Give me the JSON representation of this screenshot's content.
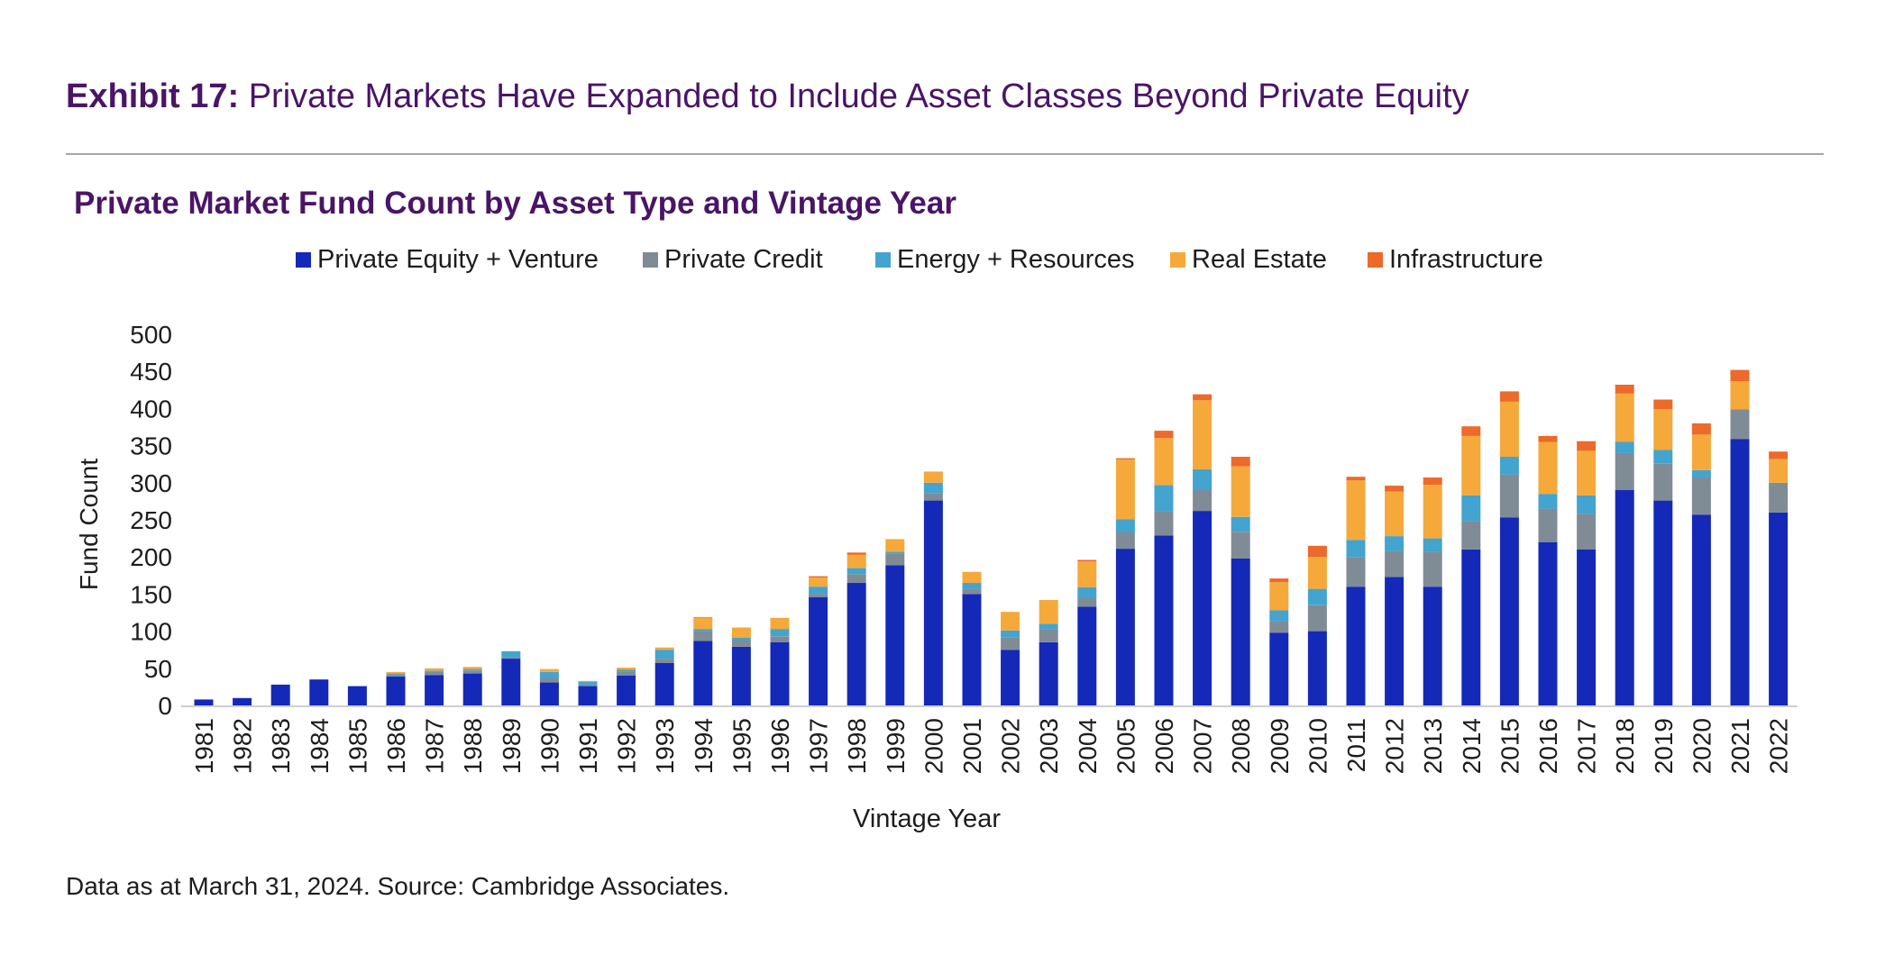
{
  "exhibit": {
    "lead": "Exhibit 17:",
    "text": " Private Markets Have Expanded to Include Asset Classes Beyond Private Equity"
  },
  "source": "Data as at March 31, 2024. Source: Cambridge Associates.",
  "chart_data": {
    "type": "bar",
    "stacked": true,
    "title": "Private Market Fund Count by Asset Type and Vintage Year",
    "xlabel": "Vintage Year",
    "ylabel": "Fund Count",
    "ylim": [
      0,
      500
    ],
    "yticks": [
      0,
      50,
      100,
      150,
      200,
      250,
      300,
      350,
      400,
      450,
      500
    ],
    "legend": "top",
    "grid": false,
    "categories": [
      "1981",
      "1982",
      "1983",
      "1984",
      "1985",
      "1986",
      "1987",
      "1988",
      "1989",
      "1990",
      "1991",
      "1992",
      "1993",
      "1994",
      "1995",
      "1996",
      "1997",
      "1998",
      "1999",
      "2000",
      "2001",
      "2002",
      "2003",
      "2004",
      "2005",
      "2006",
      "2007",
      "2008",
      "2009",
      "2010",
      "2011",
      "2012",
      "2013",
      "2014",
      "2015",
      "2016",
      "2017",
      "2018",
      "2019",
      "2020",
      "2021",
      "2022"
    ],
    "series": [
      {
        "name": "Private Equity + Venture",
        "color": "#1429b8",
        "values": [
          8,
          10,
          28,
          35,
          26,
          39,
          41,
          43,
          63,
          31,
          26,
          40,
          57,
          87,
          79,
          85,
          146,
          165,
          189,
          276,
          150,
          75,
          85,
          133,
          211,
          229,
          262,
          198,
          98,
          100,
          160,
          173,
          160,
          210,
          253,
          220,
          210,
          290,
          276,
          257,
          359,
          260
        ]
      },
      {
        "name": "Private Credit",
        "color": "#7f8c96",
        "values": [
          0,
          0,
          0,
          0,
          0,
          3,
          4,
          4,
          2,
          6,
          2,
          6,
          6,
          13,
          9,
          8,
          4,
          12,
          16,
          10,
          7,
          17,
          18,
          12,
          22,
          33,
          28,
          36,
          15,
          35,
          40,
          35,
          47,
          38,
          58,
          45,
          48,
          50,
          50,
          50,
          40,
          40
        ]
      },
      {
        "name": "Energy + Resources",
        "color": "#43a4cf",
        "values": [
          0,
          0,
          0,
          0,
          0,
          1,
          2,
          2,
          8,
          8,
          4,
          2,
          12,
          3,
          3,
          10,
          10,
          8,
          2,
          14,
          8,
          9,
          7,
          14,
          18,
          35,
          28,
          20,
          15,
          22,
          23,
          20,
          18,
          35,
          24,
          20,
          25,
          15,
          18,
          10,
          0,
          0
        ]
      },
      {
        "name": "Real Estate",
        "color": "#f5a93a",
        "values": [
          0,
          0,
          0,
          0,
          0,
          2,
          3,
          3,
          0,
          4,
          1,
          3,
          3,
          15,
          14,
          15,
          12,
          18,
          17,
          15,
          15,
          25,
          32,
          35,
          80,
          63,
          93,
          68,
          38,
          43,
          80,
          60,
          72,
          80,
          74,
          70,
          60,
          65,
          55,
          48,
          38,
          32
        ]
      },
      {
        "name": "Infrastructure",
        "color": "#ec6a2a",
        "values": [
          0,
          0,
          0,
          0,
          0,
          0,
          0,
          0,
          0,
          0,
          0,
          0,
          0,
          1,
          0,
          0,
          2,
          3,
          0,
          0,
          0,
          0,
          0,
          2,
          2,
          10,
          8,
          13,
          5,
          15,
          5,
          8,
          10,
          13,
          14,
          8,
          13,
          12,
          13,
          15,
          15,
          10
        ]
      }
    ]
  }
}
